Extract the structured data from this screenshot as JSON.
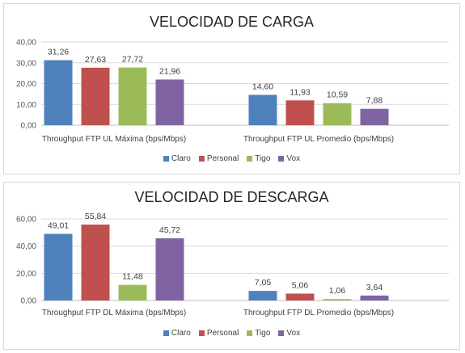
{
  "chart_data": [
    {
      "type": "bar",
      "title": "VELOCIDAD DE CARGA",
      "categories": [
        "Throughput FTP UL Máxima (bps/Mbps)",
        "Throughput FTP UL Promedio (bps/Mbps)"
      ],
      "series": [
        {
          "name": "Claro",
          "color": "#4f81bd",
          "values": [
            31.26,
            14.6
          ],
          "labels": [
            "31,26",
            "14,60"
          ]
        },
        {
          "name": "Personal",
          "color": "#c0504d",
          "values": [
            27.63,
            11.93
          ],
          "labels": [
            "27,63",
            "11,93"
          ]
        },
        {
          "name": "Tigo",
          "color": "#9bbb59",
          "values": [
            27.72,
            10.59
          ],
          "labels": [
            "27,72",
            "10,59"
          ]
        },
        {
          "name": "Vox",
          "color": "#8064a2",
          "values": [
            21.96,
            7.88
          ],
          "labels": [
            "21,96",
            "7,88"
          ]
        }
      ],
      "ylim": [
        0,
        40
      ],
      "yticks": [
        0,
        10,
        20,
        30,
        40
      ],
      "ytick_labels": [
        "0,00",
        "10,00",
        "20,00",
        "30,00",
        "40,00"
      ],
      "grid": true,
      "legend": "bottom"
    },
    {
      "type": "bar",
      "title": "VELOCIDAD DE DESCARGA",
      "categories": [
        "Throughput FTP DL Máxima (bps/Mbps)",
        "Throughput FTP DL Promedio (bps/Mbps)"
      ],
      "series": [
        {
          "name": "Claro",
          "color": "#4f81bd",
          "values": [
            49.01,
            7.05
          ],
          "labels": [
            "49,01",
            "7,05"
          ]
        },
        {
          "name": "Personal",
          "color": "#c0504d",
          "values": [
            55.84,
            5.06
          ],
          "labels": [
            "55,84",
            "5,06"
          ]
        },
        {
          "name": "Tigo",
          "color": "#9bbb59",
          "values": [
            11.48,
            1.06
          ],
          "labels": [
            "11,48",
            "1,06"
          ]
        },
        {
          "name": "Vox",
          "color": "#8064a2",
          "values": [
            45.72,
            3.64
          ],
          "labels": [
            "45,72",
            "3,64"
          ]
        }
      ],
      "ylim": [
        0,
        60
      ],
      "yticks": [
        0,
        20,
        40,
        60
      ],
      "ytick_labels": [
        "0,00",
        "20,00",
        "40,00",
        "60,00"
      ],
      "grid": true,
      "legend": "bottom"
    }
  ]
}
